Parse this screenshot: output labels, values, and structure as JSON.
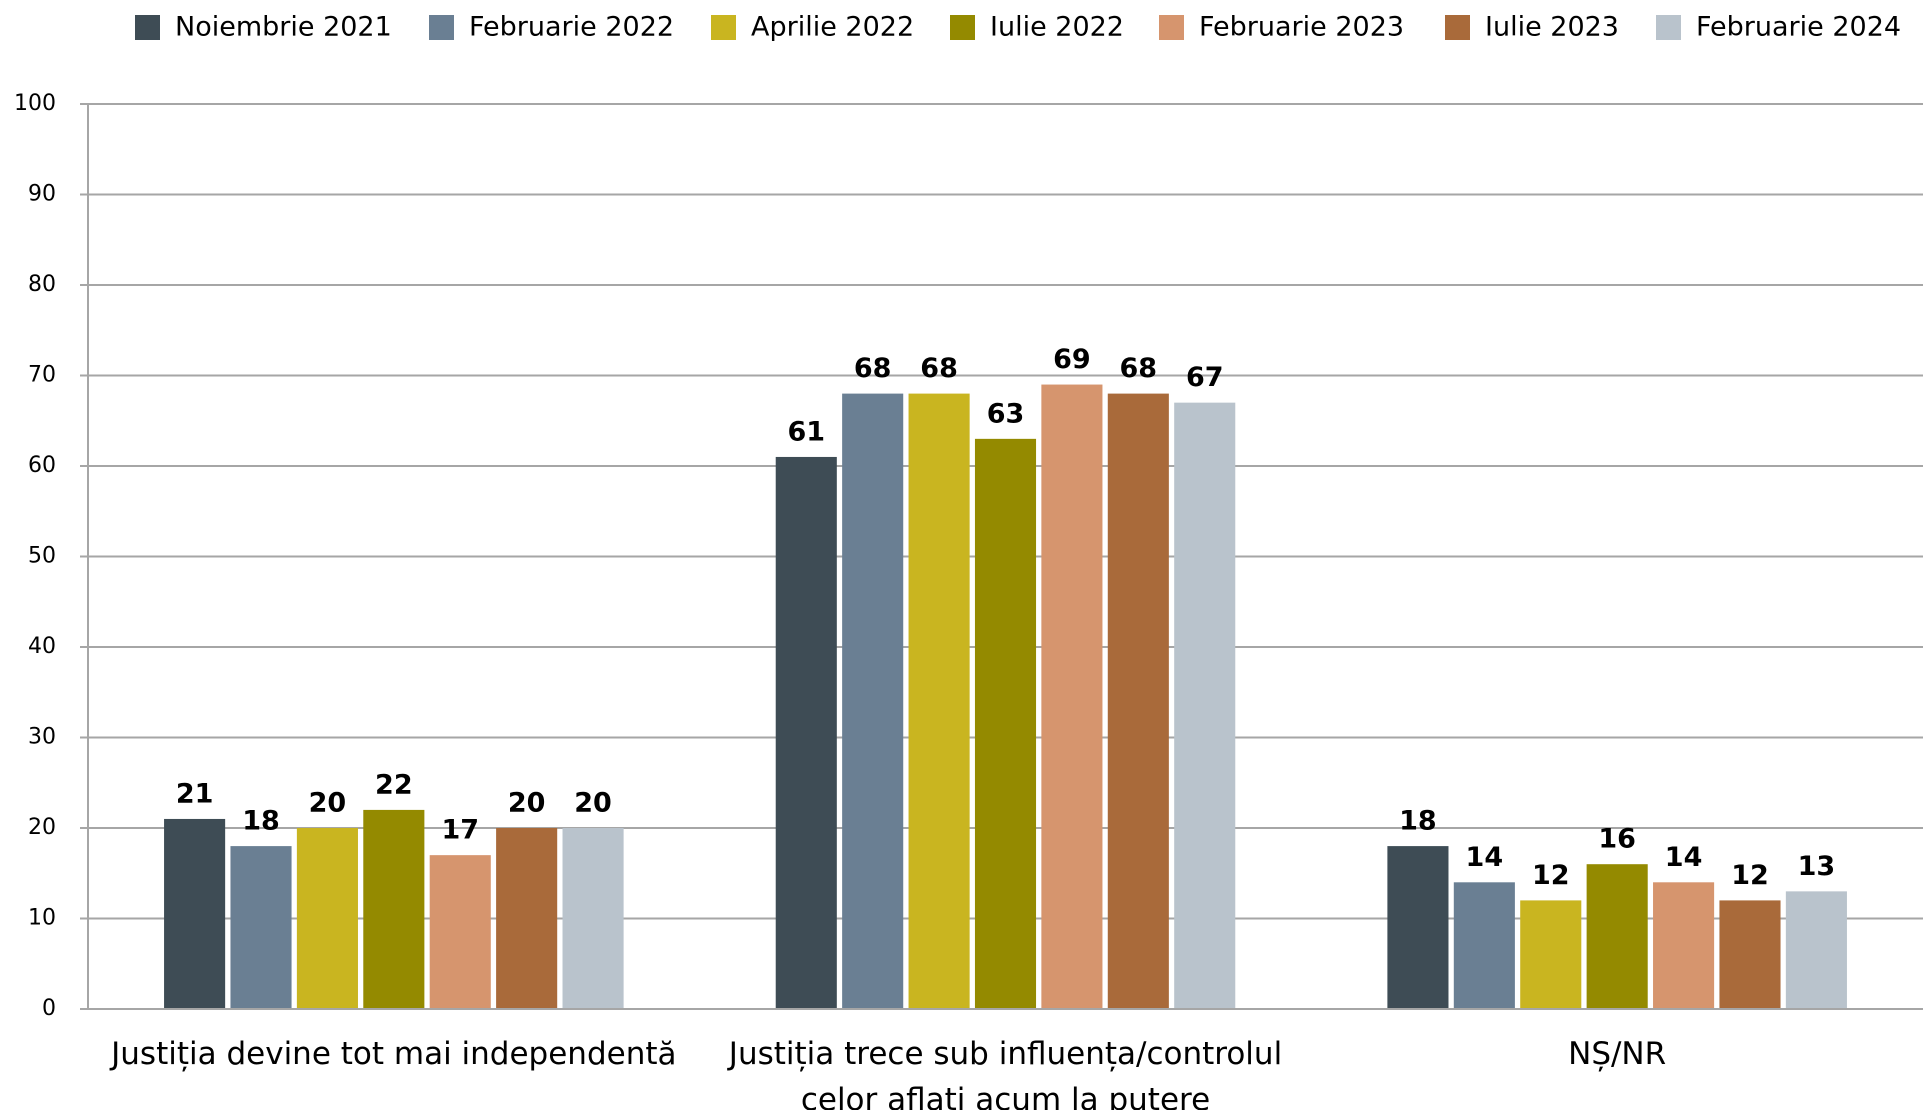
{
  "chart_data": {
    "type": "bar",
    "categories": [
      "Justiția devine tot mai independentă",
      "Justiția trece sub influența/controlul celor aflați acum la putere",
      "NȘ/NR"
    ],
    "series": [
      {
        "name": "Noiembrie 2021",
        "color": "#3e4c55",
        "values": [
          21,
          61,
          18
        ]
      },
      {
        "name": "Februarie 2022",
        "color": "#6a7f93",
        "values": [
          18,
          68,
          14
        ]
      },
      {
        "name": "Aprilie 2022",
        "color": "#c9b520",
        "values": [
          20,
          68,
          12
        ]
      },
      {
        "name": "Iulie 2022",
        "color": "#948a00",
        "values": [
          22,
          63,
          16
        ]
      },
      {
        "name": "Februarie 2023",
        "color": "#d6956e",
        "values": [
          17,
          69,
          14
        ]
      },
      {
        "name": "Iulie 2023",
        "color": "#a96a3a",
        "values": [
          20,
          68,
          12
        ]
      },
      {
        "name": "Februarie 2024",
        "color": "#b9c3cc",
        "values": [
          20,
          67,
          13
        ]
      }
    ],
    "ylim": [
      0,
      100
    ],
    "yticks": [
      0,
      10,
      20,
      30,
      40,
      50,
      60,
      70,
      80,
      90,
      100
    ],
    "grid": true,
    "legend": "top"
  }
}
